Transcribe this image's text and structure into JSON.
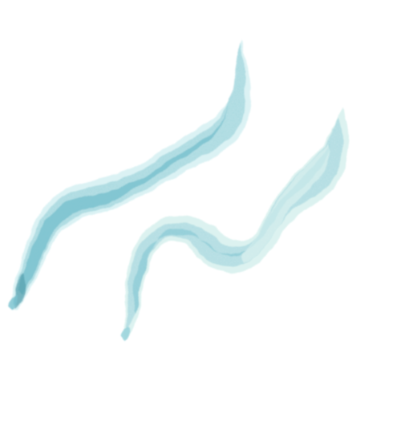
{
  "illustration": {
    "subject": "watercolor-wave-strokes",
    "stroke_count": 2,
    "colors": {
      "background": "#ffffff",
      "wash_light": "#d7f0ef",
      "wash_mid": "#9fd6dc",
      "wash_main": "#7cc3d0",
      "wash_dark": "#5aaebd",
      "pigment_pool": "#4f9aa8"
    }
  }
}
